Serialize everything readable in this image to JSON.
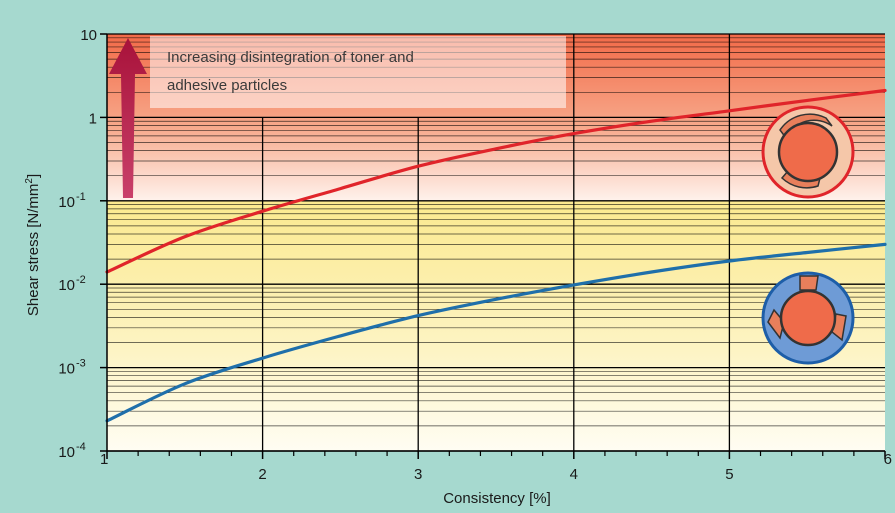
{
  "chart_data": {
    "type": "line",
    "xlabel": "Consistency [%]",
    "ylabel": "Shear stress [N/mm",
    "ylabel_sup": "2",
    "ylabel_end": "]",
    "x_ticks": [
      "1",
      "2",
      "3",
      "4",
      "5",
      "6"
    ],
    "y_ticks": [
      {
        "base": "10",
        "exp": "-4"
      },
      {
        "base": "10",
        "exp": "-3"
      },
      {
        "base": "10",
        "exp": "-2"
      },
      {
        "base": "10",
        "exp": "-1"
      },
      {
        "base": "1",
        "exp": ""
      },
      {
        "base": "10",
        "exp": ""
      }
    ],
    "xlim": [
      1,
      6
    ],
    "ylim": [
      0.0001,
      10
    ],
    "y_scale": "log",
    "grid": true,
    "annotation": [
      "Increasing disintegration of toner and",
      "adhesive particles"
    ],
    "series": [
      {
        "color": "#e0242a",
        "x": [
          1,
          1.5,
          2,
          2.5,
          3,
          3.5,
          4,
          4.5,
          5,
          5.5,
          6
        ],
        "y": [
          0.014,
          0.037,
          0.075,
          0.14,
          0.26,
          0.42,
          0.64,
          0.9,
          1.2,
          1.6,
          2.1
        ]
      },
      {
        "color": "#1f6faa",
        "x": [
          1,
          1.5,
          2,
          2.5,
          3,
          3.5,
          4,
          4.5,
          5,
          5.5,
          6
        ],
        "y": [
          0.00023,
          0.00064,
          0.0013,
          0.0024,
          0.0042,
          0.0066,
          0.0098,
          0.014,
          0.019,
          0.024,
          0.03
        ]
      }
    ],
    "bands": [
      {
        "from": 0.1,
        "to": 10,
        "color": "#f47a5a"
      },
      {
        "from": 0.0001,
        "to": 0.1,
        "color": "#fbeea0"
      }
    ],
    "colors": {
      "background": "#a6d9cf",
      "arrow": "#a8123a",
      "icon_red_ring": "#e0242a",
      "icon_red_fill": "#f5c7a9",
      "icon_red_core": "#ef6b4a",
      "icon_blue_fill": "#6e9bd6",
      "icon_blue_ring": "#1d5ea8",
      "icon_blade": "#e87f5b"
    },
    "icons": [
      "rotor-single-blade-icon",
      "rotor-multi-blade-icon"
    ]
  }
}
